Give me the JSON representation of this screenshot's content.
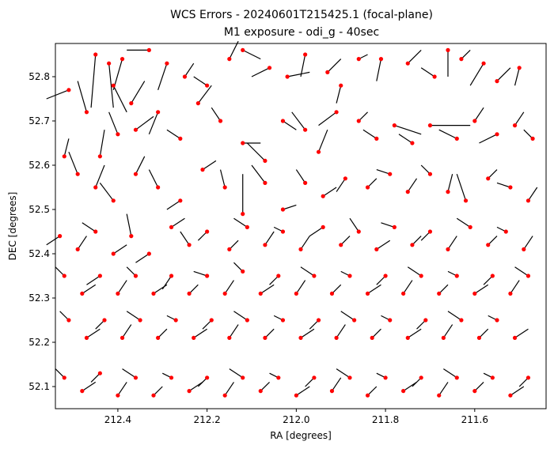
{
  "chart_data": {
    "type": "scatter",
    "title": "WCS Errors - 20240601T215425.1 (focal-plane)",
    "subtitle": "M1 exposure - odi_g - 40sec",
    "xlabel": "RA [degrees]",
    "ylabel": "DEC [degrees]",
    "xlim": [
      212.54,
      211.44
    ],
    "ylim": [
      52.05,
      52.875
    ],
    "x_inverted": true,
    "grid": false,
    "xticks": [
      212.4,
      212.2,
      212.0,
      211.8,
      211.6
    ],
    "yticks": [
      52.1,
      52.2,
      52.3,
      52.4,
      52.5,
      52.6,
      52.7,
      52.8
    ],
    "xtick_labels": [
      "212.4",
      "212.2",
      "212.0",
      "211.8",
      "211.6"
    ],
    "ytick_labels": [
      "52.1",
      "52.2",
      "52.3",
      "52.4",
      "52.5",
      "52.6",
      "52.7",
      "52.8"
    ],
    "marker_color": "#ff0000",
    "vector_color": "#000000",
    "points": [
      [
        212.51,
        52.77,
        0.05,
        -0.02
      ],
      [
        212.45,
        52.85,
        0.01,
        -0.12
      ],
      [
        212.42,
        52.83,
        -0.01,
        -0.1
      ],
      [
        212.41,
        52.78,
        -0.03,
        -0.06
      ],
      [
        212.39,
        52.84,
        0.02,
        -0.07
      ],
      [
        212.37,
        52.74,
        -0.03,
        0.05
      ],
      [
        212.33,
        52.86,
        0.05,
        0.0
      ],
      [
        212.29,
        52.83,
        0.02,
        -0.06
      ],
      [
        212.25,
        52.8,
        -0.02,
        0.03
      ],
      [
        212.2,
        52.78,
        0.03,
        0.02
      ],
      [
        212.15,
        52.84,
        -0.02,
        0.04
      ],
      [
        212.12,
        52.86,
        -0.04,
        -0.02
      ],
      [
        212.06,
        52.82,
        0.04,
        -0.02
      ],
      [
        212.02,
        52.8,
        -0.05,
        0.01
      ],
      [
        211.98,
        52.85,
        0.01,
        -0.05
      ],
      [
        211.93,
        52.81,
        -0.03,
        0.03
      ],
      [
        211.9,
        52.78,
        0.01,
        -0.04
      ],
      [
        211.86,
        52.84,
        -0.02,
        0.01
      ],
      [
        211.81,
        52.84,
        0.01,
        -0.05
      ],
      [
        211.75,
        52.83,
        -0.03,
        0.03
      ],
      [
        211.69,
        52.8,
        0.03,
        0.02
      ],
      [
        211.66,
        52.86,
        0.0,
        -0.06
      ],
      [
        211.63,
        52.84,
        -0.02,
        0.02
      ],
      [
        211.58,
        52.83,
        0.03,
        -0.05
      ],
      [
        211.55,
        52.79,
        -0.03,
        0.03
      ],
      [
        211.5,
        52.82,
        0.01,
        -0.04
      ],
      [
        212.47,
        52.72,
        0.02,
        0.07
      ],
      [
        212.44,
        52.62,
        -0.01,
        0.06
      ],
      [
        212.4,
        52.67,
        0.02,
        0.05
      ],
      [
        212.36,
        52.68,
        -0.04,
        0.03
      ],
      [
        212.31,
        52.72,
        0.02,
        -0.05
      ],
      [
        212.26,
        52.66,
        0.03,
        0.02
      ],
      [
        212.22,
        52.74,
        -0.03,
        0.04
      ],
      [
        212.17,
        52.7,
        0.02,
        0.03
      ],
      [
        212.12,
        52.65,
        -0.04,
        0.0
      ],
      [
        212.07,
        52.61,
        0.04,
        0.04
      ],
      [
        212.03,
        52.7,
        -0.03,
        -0.02
      ],
      [
        211.98,
        52.68,
        0.03,
        0.04
      ],
      [
        211.95,
        52.63,
        -0.02,
        0.05
      ],
      [
        211.91,
        52.72,
        0.04,
        -0.03
      ],
      [
        211.86,
        52.7,
        -0.02,
        0.02
      ],
      [
        211.82,
        52.66,
        0.03,
        0.02
      ],
      [
        211.78,
        52.69,
        -0.06,
        -0.02
      ],
      [
        211.74,
        52.65,
        0.03,
        0.02
      ],
      [
        211.7,
        52.69,
        -0.09,
        0.0
      ],
      [
        211.64,
        52.66,
        0.04,
        0.02
      ],
      [
        211.6,
        52.7,
        -0.02,
        0.03
      ],
      [
        211.55,
        52.67,
        0.04,
        -0.02
      ],
      [
        211.51,
        52.69,
        -0.02,
        0.03
      ],
      [
        211.47,
        52.66,
        0.02,
        0.02
      ],
      [
        212.52,
        52.62,
        -0.01,
        0.04
      ],
      [
        212.49,
        52.58,
        0.02,
        0.05
      ],
      [
        212.45,
        52.55,
        -0.02,
        0.05
      ],
      [
        212.41,
        52.52,
        0.03,
        0.04
      ],
      [
        212.36,
        52.58,
        -0.02,
        0.04
      ],
      [
        212.31,
        52.55,
        0.02,
        0.04
      ],
      [
        212.26,
        52.52,
        0.03,
        -0.02
      ],
      [
        212.21,
        52.59,
        -0.03,
        0.02
      ],
      [
        212.16,
        52.55,
        0.01,
        0.04
      ],
      [
        212.12,
        52.49,
        0.0,
        0.09
      ],
      [
        212.07,
        52.56,
        0.03,
        0.04
      ],
      [
        212.03,
        52.5,
        -0.03,
        0.01
      ],
      [
        211.98,
        52.56,
        0.02,
        0.03
      ],
      [
        211.94,
        52.53,
        -0.03,
        0.02
      ],
      [
        211.89,
        52.57,
        0.02,
        -0.03
      ],
      [
        211.84,
        52.55,
        -0.02,
        0.02
      ],
      [
        211.79,
        52.58,
        0.03,
        0.01
      ],
      [
        211.75,
        52.54,
        -0.02,
        0.03
      ],
      [
        211.7,
        52.58,
        0.02,
        0.02
      ],
      [
        211.66,
        52.54,
        -0.01,
        0.04
      ],
      [
        211.62,
        52.52,
        0.02,
        0.06
      ],
      [
        211.57,
        52.57,
        -0.02,
        0.02
      ],
      [
        211.52,
        52.55,
        0.03,
        0.01
      ],
      [
        211.48,
        52.52,
        -0.02,
        0.03
      ],
      [
        212.53,
        52.44,
        0.03,
        -0.02
      ],
      [
        212.49,
        52.41,
        -0.02,
        0.03
      ],
      [
        212.45,
        52.45,
        0.03,
        0.02
      ],
      [
        212.41,
        52.4,
        -0.03,
        0.02
      ],
      [
        212.37,
        52.44,
        0.01,
        0.05
      ],
      [
        212.33,
        52.4,
        0.03,
        -0.02
      ],
      [
        212.28,
        52.46,
        -0.03,
        0.02
      ],
      [
        212.24,
        52.42,
        0.02,
        0.03
      ],
      [
        212.2,
        52.45,
        0.02,
        -0.02
      ],
      [
        212.15,
        52.41,
        -0.02,
        0.02
      ],
      [
        212.11,
        52.46,
        0.03,
        0.02
      ],
      [
        212.07,
        52.42,
        -0.02,
        0.03
      ],
      [
        212.03,
        52.45,
        0.02,
        0.01
      ],
      [
        211.99,
        52.41,
        -0.02,
        0.03
      ],
      [
        211.94,
        52.46,
        0.03,
        -0.02
      ],
      [
        211.9,
        52.42,
        -0.02,
        0.02
      ],
      [
        211.86,
        52.45,
        0.02,
        0.03
      ],
      [
        211.82,
        52.41,
        -0.03,
        0.02
      ],
      [
        211.78,
        52.46,
        0.03,
        0.01
      ],
      [
        211.74,
        52.42,
        -0.02,
        0.02
      ],
      [
        211.7,
        52.45,
        0.02,
        -0.02
      ],
      [
        211.66,
        52.41,
        -0.02,
        0.03
      ],
      [
        211.61,
        52.46,
        0.03,
        0.02
      ],
      [
        211.57,
        52.42,
        -0.02,
        0.02
      ],
      [
        211.53,
        52.45,
        0.02,
        0.01
      ],
      [
        211.49,
        52.41,
        -0.02,
        0.03
      ],
      [
        212.52,
        52.35,
        0.02,
        0.02
      ],
      [
        212.48,
        52.31,
        -0.03,
        0.02
      ],
      [
        212.44,
        52.35,
        0.03,
        -0.02
      ],
      [
        212.4,
        52.31,
        -0.02,
        0.03
      ],
      [
        212.36,
        52.35,
        0.02,
        0.02
      ],
      [
        212.32,
        52.31,
        -0.03,
        0.02
      ],
      [
        212.28,
        52.35,
        0.02,
        -0.03
      ],
      [
        212.24,
        52.31,
        -0.02,
        0.02
      ],
      [
        212.2,
        52.35,
        0.03,
        0.01
      ],
      [
        212.16,
        52.31,
        -0.02,
        0.03
      ],
      [
        212.12,
        52.36,
        0.02,
        0.02
      ],
      [
        212.08,
        52.31,
        -0.03,
        0.02
      ],
      [
        212.04,
        52.35,
        0.02,
        -0.02
      ],
      [
        212.0,
        52.31,
        -0.02,
        0.03
      ],
      [
        211.96,
        52.35,
        0.03,
        0.02
      ],
      [
        211.92,
        52.31,
        -0.02,
        0.02
      ],
      [
        211.88,
        52.35,
        0.02,
        0.01
      ],
      [
        211.84,
        52.31,
        -0.03,
        0.02
      ],
      [
        211.8,
        52.35,
        0.02,
        -0.02
      ],
      [
        211.76,
        52.31,
        -0.02,
        0.03
      ],
      [
        211.72,
        52.35,
        0.03,
        0.02
      ],
      [
        211.68,
        52.31,
        -0.02,
        0.02
      ],
      [
        211.64,
        52.35,
        0.02,
        0.01
      ],
      [
        211.6,
        52.31,
        -0.03,
        0.02
      ],
      [
        211.56,
        52.35,
        0.02,
        -0.02
      ],
      [
        211.52,
        52.31,
        -0.02,
        0.03
      ],
      [
        211.48,
        52.35,
        0.03,
        0.02
      ],
      [
        212.51,
        52.25,
        0.02,
        0.02
      ],
      [
        212.47,
        52.21,
        -0.03,
        0.02
      ],
      [
        212.43,
        52.25,
        0.02,
        -0.02
      ],
      [
        212.39,
        52.21,
        -0.02,
        0.03
      ],
      [
        212.35,
        52.25,
        0.03,
        0.02
      ],
      [
        212.31,
        52.21,
        -0.02,
        0.02
      ],
      [
        212.27,
        52.25,
        0.02,
        0.01
      ],
      [
        212.23,
        52.21,
        -0.03,
        0.02
      ],
      [
        212.19,
        52.25,
        0.02,
        -0.02
      ],
      [
        212.15,
        52.21,
        -0.02,
        0.03
      ],
      [
        212.11,
        52.25,
        0.03,
        0.02
      ],
      [
        212.07,
        52.21,
        -0.02,
        0.02
      ],
      [
        212.03,
        52.25,
        0.02,
        0.01
      ],
      [
        211.99,
        52.21,
        -0.03,
        0.02
      ],
      [
        211.95,
        52.25,
        0.02,
        -0.02
      ],
      [
        211.91,
        52.21,
        -0.02,
        0.03
      ],
      [
        211.87,
        52.25,
        0.03,
        0.02
      ],
      [
        211.83,
        52.21,
        -0.02,
        0.02
      ],
      [
        211.79,
        52.25,
        0.02,
        0.01
      ],
      [
        211.75,
        52.21,
        -0.03,
        0.02
      ],
      [
        211.71,
        52.25,
        0.02,
        -0.02
      ],
      [
        211.67,
        52.21,
        -0.02,
        0.03
      ],
      [
        211.63,
        52.25,
        0.03,
        0.02
      ],
      [
        211.59,
        52.21,
        -0.02,
        0.02
      ],
      [
        211.55,
        52.25,
        0.02,
        0.01
      ],
      [
        211.51,
        52.21,
        -0.03,
        0.02
      ],
      [
        212.52,
        52.12,
        0.02,
        0.02
      ],
      [
        212.48,
        52.09,
        -0.03,
        0.02
      ],
      [
        212.44,
        52.13,
        0.02,
        -0.02
      ],
      [
        212.4,
        52.08,
        -0.02,
        0.03
      ],
      [
        212.36,
        52.12,
        0.03,
        0.02
      ],
      [
        212.32,
        52.08,
        -0.02,
        0.02
      ],
      [
        212.28,
        52.12,
        0.02,
        0.01
      ],
      [
        212.24,
        52.09,
        -0.03,
        0.02
      ],
      [
        212.2,
        52.12,
        0.02,
        -0.02
      ],
      [
        212.16,
        52.08,
        -0.02,
        0.03
      ],
      [
        212.12,
        52.12,
        0.03,
        0.02
      ],
      [
        212.08,
        52.09,
        -0.02,
        0.02
      ],
      [
        212.04,
        52.12,
        0.02,
        0.01
      ],
      [
        212.0,
        52.08,
        -0.03,
        0.02
      ],
      [
        211.96,
        52.12,
        0.02,
        -0.02
      ],
      [
        211.92,
        52.09,
        -0.02,
        0.03
      ],
      [
        211.88,
        52.12,
        0.03,
        0.02
      ],
      [
        211.84,
        52.08,
        -0.02,
        0.02
      ],
      [
        211.8,
        52.12,
        0.02,
        0.01
      ],
      [
        211.76,
        52.09,
        -0.03,
        0.02
      ],
      [
        211.72,
        52.12,
        0.02,
        -0.02
      ],
      [
        211.68,
        52.08,
        -0.02,
        0.03
      ],
      [
        211.64,
        52.12,
        0.03,
        0.02
      ],
      [
        211.6,
        52.09,
        -0.02,
        0.02
      ],
      [
        211.56,
        52.12,
        0.02,
        0.01
      ],
      [
        211.52,
        52.08,
        -0.03,
        0.02
      ],
      [
        211.48,
        52.12,
        0.02,
        -0.02
      ]
    ]
  }
}
